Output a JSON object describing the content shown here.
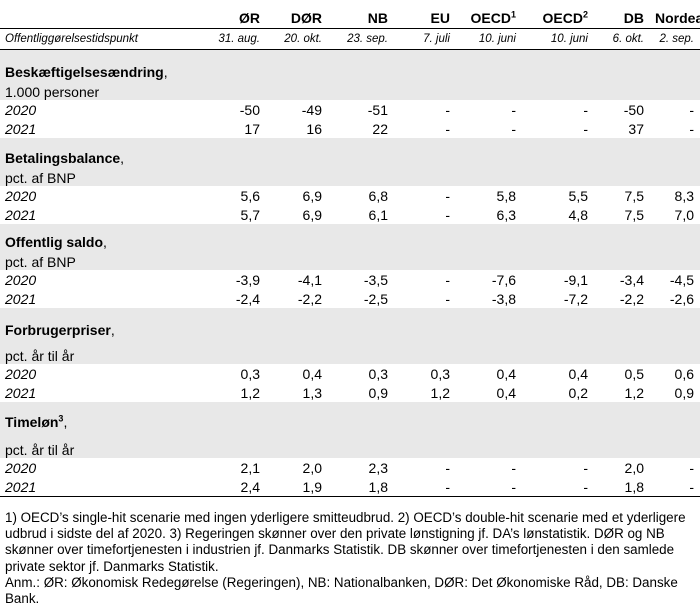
{
  "header": {
    "columns": [
      {
        "label": "ØR",
        "sup": ""
      },
      {
        "label": "DØR",
        "sup": ""
      },
      {
        "label": "NB",
        "sup": ""
      },
      {
        "label": "EU",
        "sup": ""
      },
      {
        "label": "OECD",
        "sup": "1"
      },
      {
        "label": "OECD",
        "sup": "2"
      },
      {
        "label": "DB",
        "sup": ""
      },
      {
        "label": "Nordea",
        "sup": ""
      }
    ],
    "date_row_label": "Offentliggørelsestidspunkt",
    "dates": [
      "31. aug.",
      "20. okt.",
      "23. sep.",
      "7. juli",
      "10. juni",
      "10. juni",
      "6. okt.",
      "2. sep."
    ]
  },
  "sections": [
    {
      "title": "Beskæftigelsesændring",
      "title_sup": "",
      "unit": "1.000 personer",
      "rows": [
        {
          "year": "2020",
          "values": [
            "-50",
            "-49",
            "-51",
            "-",
            "-",
            "-",
            "-50",
            "-"
          ]
        },
        {
          "year": "2021",
          "values": [
            "17",
            "16",
            "22",
            "-",
            "-",
            "-",
            "37",
            "-"
          ]
        }
      ]
    },
    {
      "title": "Betalingsbalance",
      "title_sup": "",
      "unit": "pct. af BNP",
      "rows": [
        {
          "year": "2020",
          "values": [
            "5,6",
            "6,9",
            "6,8",
            "-",
            "5,8",
            "5,5",
            "7,5",
            "8,3"
          ]
        },
        {
          "year": "2021",
          "values": [
            "5,7",
            "6,9",
            "6,1",
            "-",
            "6,3",
            "4,8",
            "7,5",
            "7,0"
          ]
        }
      ]
    },
    {
      "title": "Offentlig saldo",
      "title_sup": "",
      "unit": "pct. af BNP",
      "rows": [
        {
          "year": "2020",
          "values": [
            "-3,9",
            "-4,1",
            "-3,5",
            "-",
            "-7,6",
            "-9,1",
            "-3,4",
            "-4,5"
          ]
        },
        {
          "year": "2021",
          "values": [
            "-2,4",
            "-2,2",
            "-2,5",
            "-",
            "-3,8",
            "-7,2",
            "-2,2",
            "-2,6"
          ]
        }
      ]
    },
    {
      "title": "Forbrugerpriser",
      "title_sup": "",
      "unit": "pct. år til år",
      "rows": [
        {
          "year": "2020",
          "values": [
            "0,3",
            "0,4",
            "0,3",
            "0,3",
            "0,4",
            "0,4",
            "0,5",
            "0,6"
          ]
        },
        {
          "year": "2021",
          "values": [
            "1,2",
            "1,3",
            "0,9",
            "1,2",
            "0,4",
            "0,2",
            "1,2",
            "0,9"
          ]
        }
      ]
    },
    {
      "title": "Timeløn",
      "title_sup": "3",
      "unit": "pct. år til år",
      "rows": [
        {
          "year": "2020",
          "values": [
            "2,1",
            "2,0",
            "2,3",
            "-",
            "-",
            "-",
            "2,0",
            "-"
          ]
        },
        {
          "year": "2021",
          "values": [
            "2,4",
            "1,9",
            "1,8",
            "-",
            "-",
            "-",
            "1,8",
            "-"
          ]
        }
      ]
    }
  ],
  "footnotes": {
    "note1": "1) OECD’s single-hit scenarie med ingen yderligere smitteudbrud. 2) OECD’s double-hit scenarie med et yderligere udbrud i sidste del af 2020. 3) Regeringen skønner over den private lønstigning jf. DA’s løn­statistik. DØR og NB skønner over timefortjenesten i industrien jf. Danmarks Statistik. DB skønner over timefortjenesten i den samlede private sektor jf. Danmarks Statistik.",
    "note2": "Anm.: ØR: Økonomisk Redegørelse (Regeringen), NB: Nationalbanken, DØR: Det Økonomiske Råd, DB: Danske Bank."
  }
}
